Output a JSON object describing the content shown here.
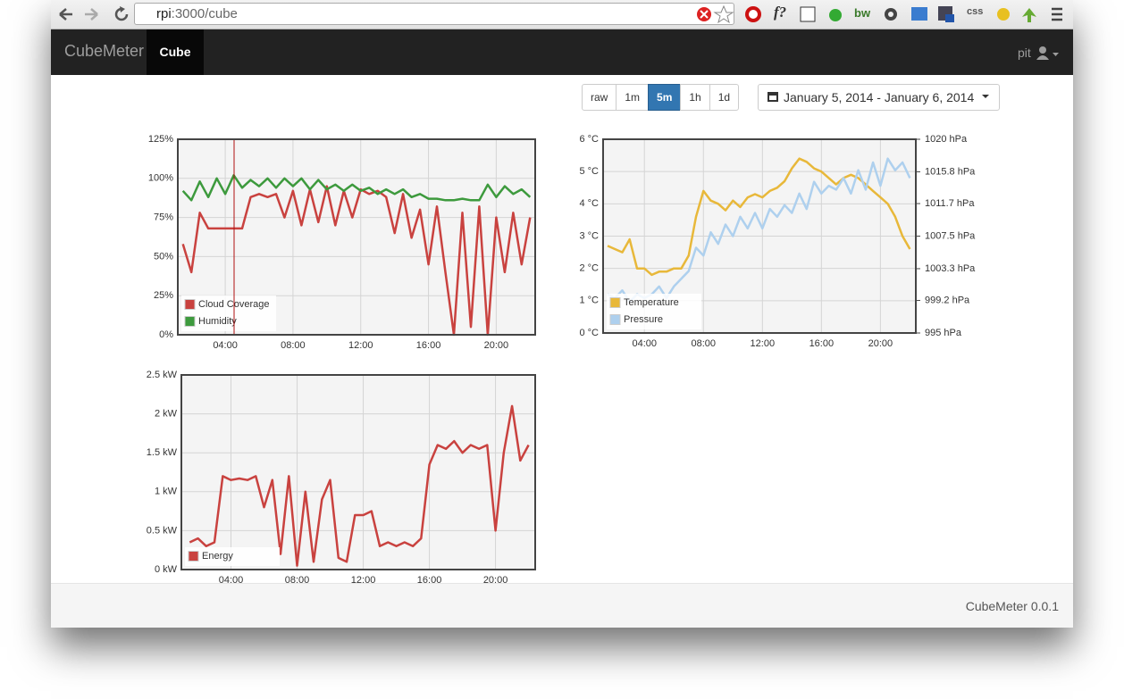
{
  "browser": {
    "url_host": "rpi",
    "url_path": ":3000/cube",
    "extension_labels": [
      "f?",
      "bw",
      "css"
    ]
  },
  "navbar": {
    "brand": "CubeMeter",
    "active_tab": "Cube",
    "user": "pit"
  },
  "controls": {
    "ranges": [
      "raw",
      "1m",
      "5m",
      "1h",
      "1d"
    ],
    "active_range": "5m",
    "date_range": "January 5, 2014 - January 6, 2014"
  },
  "footer": {
    "text": "CubeMeter 0.0.1"
  },
  "chart_data": [
    {
      "type": "line",
      "x": [
        1.5,
        2,
        2.5,
        3,
        3.5,
        4,
        4.5,
        5,
        5.5,
        6,
        6.5,
        7,
        7.5,
        8,
        8.5,
        9,
        9.5,
        10,
        10.5,
        11,
        11.5,
        12,
        12.5,
        13,
        13.5,
        14,
        14.5,
        15,
        15.5,
        16,
        16.5,
        17,
        17.5,
        18,
        18.5,
        19,
        19.5,
        20,
        20.5,
        21,
        21.5,
        22
      ],
      "xlim": [
        1.2,
        22.3
      ],
      "xticks": [
        {
          "value": 4,
          "label": "04:00"
        },
        {
          "value": 8,
          "label": "08:00"
        },
        {
          "value": 12,
          "label": "12:00"
        },
        {
          "value": 16,
          "label": "16:00"
        },
        {
          "value": 20,
          "label": "20:00"
        }
      ],
      "ylim": [
        0,
        125
      ],
      "yticks": [
        {
          "value": 0,
          "label": "0%"
        },
        {
          "value": 25,
          "label": "25%"
        },
        {
          "value": 50,
          "label": "50%"
        },
        {
          "value": 75,
          "label": "75%"
        },
        {
          "value": 100,
          "label": "100%"
        },
        {
          "value": 125,
          "label": "125%"
        }
      ],
      "grid": true,
      "series": [
        {
          "name": "Cloud Coverage",
          "color": "#c9423f",
          "values": [
            58,
            40,
            78,
            68,
            68,
            68,
            68,
            68,
            88,
            90,
            88,
            90,
            75,
            92,
            70,
            93,
            72,
            95,
            70,
            92,
            75,
            93,
            90,
            92,
            88,
            65,
            90,
            62,
            80,
            45,
            82,
            40,
            0,
            78,
            5,
            82,
            0,
            75,
            40,
            78,
            45,
            75
          ]
        },
        {
          "name": "Humidity",
          "color": "#3d9a3d",
          "values": [
            92,
            86,
            98,
            88,
            100,
            90,
            102,
            94,
            99,
            95,
            100,
            94,
            100,
            95,
            100,
            93,
            99,
            93,
            96,
            92,
            96,
            92,
            94,
            90,
            93,
            90,
            93,
            88,
            90,
            87,
            87,
            86,
            86,
            87,
            86,
            86,
            96,
            88,
            95,
            90,
            93,
            88
          ]
        }
      ]
    },
    {
      "type": "line",
      "x": [
        1.5,
        2,
        2.5,
        3,
        3.5,
        4,
        4.5,
        5,
        5.5,
        6,
        6.5,
        7,
        7.5,
        8,
        8.5,
        9,
        9.5,
        10,
        10.5,
        11,
        11.5,
        12,
        12.5,
        13,
        13.5,
        14,
        14.5,
        15,
        15.5,
        16,
        16.5,
        17,
        17.5,
        18,
        18.5,
        19,
        19.5,
        20,
        20.5,
        21,
        21.5,
        22
      ],
      "xlim": [
        1.2,
        22.4
      ],
      "xticks": [
        {
          "value": 4,
          "label": "04:00"
        },
        {
          "value": 8,
          "label": "08:00"
        },
        {
          "value": 12,
          "label": "12:00"
        },
        {
          "value": 16,
          "label": "16:00"
        },
        {
          "value": 20,
          "label": "20:00"
        }
      ],
      "ylim": [
        0,
        6
      ],
      "yticks": [
        {
          "value": 0,
          "label": "0 °C"
        },
        {
          "value": 1,
          "label": "1 °C"
        },
        {
          "value": 2,
          "label": "2 °C"
        },
        {
          "value": 3,
          "label": "3 °C"
        },
        {
          "value": 4,
          "label": "4 °C"
        },
        {
          "value": 5,
          "label": "5 °C"
        },
        {
          "value": 6,
          "label": "6 °C"
        }
      ],
      "y2lim": [
        995,
        1020
      ],
      "y2ticks": [
        {
          "value": 995,
          "label": "995 hPa"
        },
        {
          "value": 999.2,
          "label": "999.2 hPa"
        },
        {
          "value": 1003.3,
          "label": "1003.3 hPa"
        },
        {
          "value": 1007.5,
          "label": "1007.5 hPa"
        },
        {
          "value": 1011.7,
          "label": "1011.7 hPa"
        },
        {
          "value": 1015.8,
          "label": "1015.8 hPa"
        },
        {
          "value": 1020,
          "label": "1020 hPa"
        }
      ],
      "grid": true,
      "series": [
        {
          "name": "Temperature",
          "color": "#e8b83a",
          "values": [
            2.7,
            2.6,
            2.5,
            2.9,
            2.0,
            2.0,
            1.8,
            1.9,
            1.9,
            2.0,
            2.0,
            2.4,
            3.6,
            4.4,
            4.1,
            4.0,
            3.8,
            4.1,
            3.9,
            4.2,
            4.3,
            4.2,
            4.4,
            4.5,
            4.7,
            5.1,
            5.4,
            5.3,
            5.1,
            5.0,
            4.8,
            4.6,
            4.8,
            4.9,
            4.8,
            4.6,
            4.4,
            4.2,
            4.0,
            3.6,
            3.0,
            2.6
          ]
        },
        {
          "name": "Pressure",
          "color": "#aed0ee",
          "axis": "y2",
          "values": [
            1000,
            999.5,
            1000.5,
            999,
            1000,
            999.5,
            1000,
            1001,
            999.5,
            1001,
            1002,
            1003,
            1006,
            1005,
            1008,
            1006.5,
            1009,
            1007.5,
            1010,
            1008.5,
            1010.5,
            1008.5,
            1011,
            1010,
            1011.5,
            1010.5,
            1013,
            1011,
            1014.5,
            1013,
            1014,
            1013.5,
            1015,
            1013,
            1016,
            1013.5,
            1017,
            1014,
            1017.5,
            1016,
            1017,
            1015
          ]
        }
      ]
    },
    {
      "type": "line",
      "x": [
        1.5,
        2,
        2.5,
        3,
        3.5,
        4,
        4.5,
        5,
        5.5,
        6,
        6.5,
        7,
        7.5,
        8,
        8.5,
        9,
        9.5,
        10,
        10.5,
        11,
        11.5,
        12,
        12.5,
        13,
        13.5,
        14,
        14.5,
        15,
        15.5,
        16,
        16.5,
        17,
        17.5,
        18,
        18.5,
        19,
        19.5,
        20,
        20.5,
        21,
        21.5,
        22
      ],
      "xlim": [
        1.0,
        22.4
      ],
      "xticks": [
        {
          "value": 4,
          "label": "04:00"
        },
        {
          "value": 8,
          "label": "08:00"
        },
        {
          "value": 12,
          "label": "12:00"
        },
        {
          "value": 16,
          "label": "16:00"
        },
        {
          "value": 20,
          "label": "20:00"
        }
      ],
      "ylim": [
        0,
        2.5
      ],
      "yticks": [
        {
          "value": 0,
          "label": "0 kW"
        },
        {
          "value": 0.5,
          "label": "0.5 kW"
        },
        {
          "value": 1,
          "label": "1 kW"
        },
        {
          "value": 1.5,
          "label": "1.5 kW"
        },
        {
          "value": 2,
          "label": "2 kW"
        },
        {
          "value": 2.5,
          "label": "2.5 kW"
        }
      ],
      "grid": true,
      "series": [
        {
          "name": "Energy",
          "color": "#c9423f",
          "values": [
            0.35,
            0.4,
            0.3,
            0.35,
            1.2,
            1.15,
            1.17,
            1.15,
            1.2,
            0.8,
            1.15,
            0.2,
            1.2,
            0.05,
            1.0,
            0.1,
            0.9,
            1.15,
            0.15,
            0.1,
            0.7,
            0.7,
            0.75,
            0.3,
            0.35,
            0.3,
            0.35,
            0.3,
            0.4,
            1.35,
            1.6,
            1.55,
            1.65,
            1.5,
            1.6,
            1.55,
            1.6,
            0.5,
            1.5,
            2.1,
            1.4,
            1.6
          ]
        }
      ]
    }
  ]
}
